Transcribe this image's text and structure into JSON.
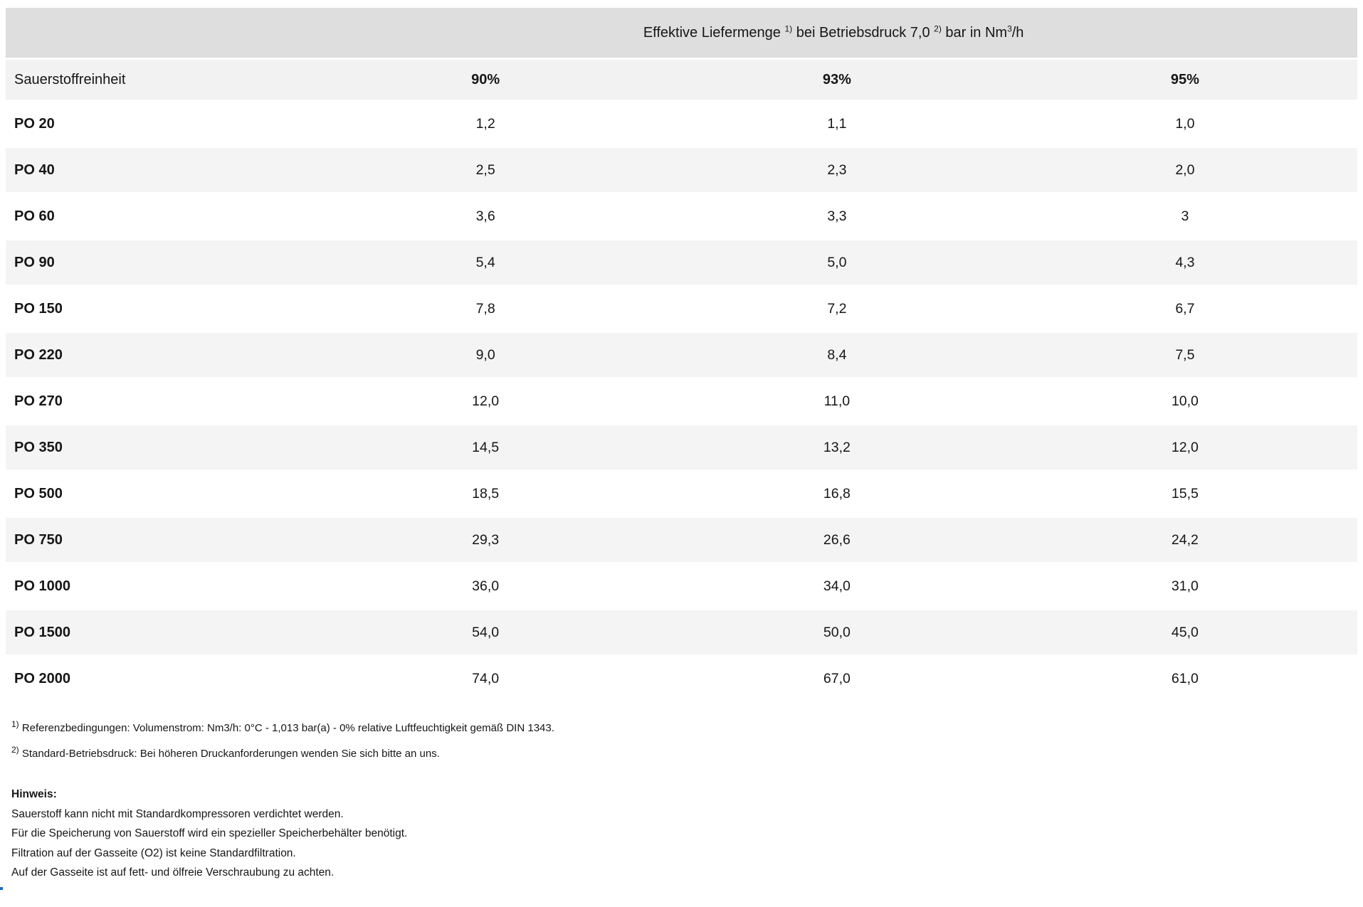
{
  "table": {
    "header": {
      "title_p1": "Effektive Liefermenge ",
      "title_sup1": "1)",
      "title_p2": " bei Betriebsdruck 7,0 ",
      "title_sup2": "2)",
      "title_p3": " bar in Nm",
      "title_sup3": "3",
      "title_p4": "/h"
    },
    "subheader": {
      "label": "Sauerstoffreinheit",
      "cols": [
        "90%",
        "93%",
        "95%"
      ]
    },
    "rows": [
      {
        "model": "PO 20",
        "values": [
          "1,2",
          "1,1",
          "1,0"
        ]
      },
      {
        "model": "PO 40",
        "values": [
          "2,5",
          "2,3",
          "2,0"
        ]
      },
      {
        "model": "PO 60",
        "values": [
          "3,6",
          "3,3",
          "3"
        ]
      },
      {
        "model": "PO 90",
        "values": [
          "5,4",
          "5,0",
          "4,3"
        ]
      },
      {
        "model": "PO 150",
        "values": [
          "7,8",
          "7,2",
          "6,7"
        ]
      },
      {
        "model": "PO 220",
        "values": [
          "9,0",
          "8,4",
          "7,5"
        ]
      },
      {
        "model": "PO 270",
        "values": [
          "12,0",
          "11,0",
          "10,0"
        ]
      },
      {
        "model": "PO 350",
        "values": [
          "14,5",
          "13,2",
          "12,0"
        ]
      },
      {
        "model": "PO 500",
        "values": [
          "18,5",
          "16,8",
          "15,5"
        ]
      },
      {
        "model": "PO 750",
        "values": [
          "29,3",
          "26,6",
          "24,2"
        ]
      },
      {
        "model": "PO 1000",
        "values": [
          "36,0",
          "34,0",
          "31,0"
        ]
      },
      {
        "model": "PO 1500",
        "values": [
          "54,0",
          "50,0",
          "45,0"
        ]
      },
      {
        "model": "PO 2000",
        "values": [
          "74,0",
          "67,0",
          "61,0"
        ]
      }
    ]
  },
  "footnotes": [
    {
      "sup": "1)",
      "text": " Referenzbedingungen: Volumenstrom: Nm3/h: 0°C - 1,013 bar(a) - 0% relative Luftfeuchtigkeit gemäß DIN 1343."
    },
    {
      "sup": "2)",
      "text": " Standard-Betriebsdruck: Bei höheren Druckanforderungen wenden Sie sich bitte an uns."
    }
  ],
  "note": {
    "heading": "Hinweis:",
    "lines": [
      "Sauerstoff kann nicht mit Standardkompressoren verdichtet werden.",
      "Für die Speicherung von Sauerstoff wird ein spezieller Speicherbehälter benötigt.",
      "Filtration auf der Gasseite (O2) ist keine Standardfiltration.",
      "Auf der Gasseite ist auf fett- und ölfreie Verschraubung zu achten."
    ]
  },
  "colors": {
    "header_band": "#dedede",
    "subheader_row": "#f2f2f2",
    "stripe_row": "#f4f4f4",
    "text": "#161616",
    "dot_blue": "#1b6ac9"
  }
}
